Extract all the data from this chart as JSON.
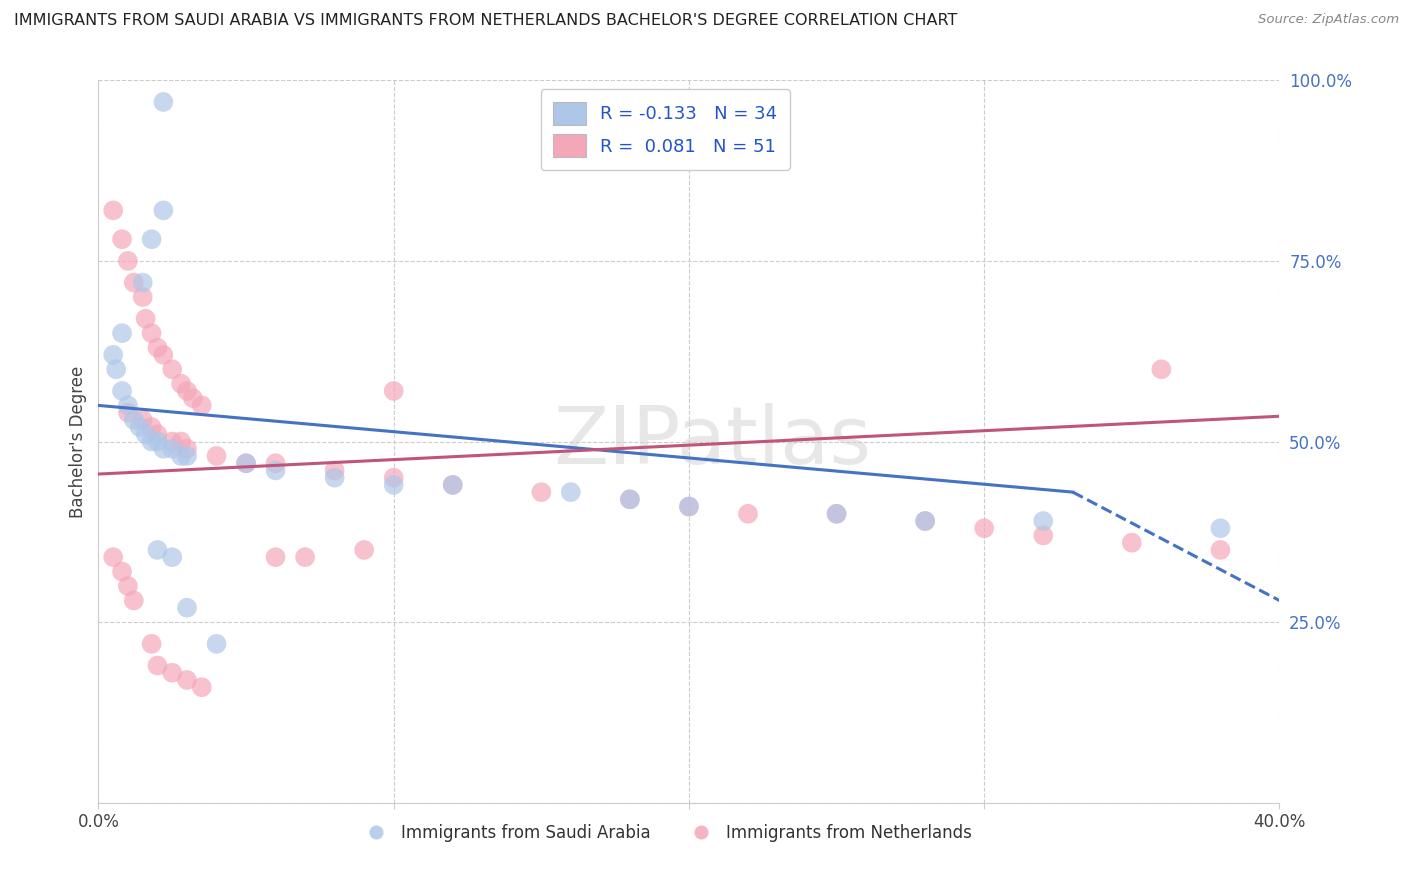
{
  "title": "IMMIGRANTS FROM SAUDI ARABIA VS IMMIGRANTS FROM NETHERLANDS BACHELOR'S DEGREE CORRELATION CHART",
  "source": "Source: ZipAtlas.com",
  "ylabel": "Bachelor's Degree",
  "watermark": "ZIPatlas",
  "legend_entries": [
    {
      "label": "R = -0.133   N = 34",
      "color": "#aec6e8"
    },
    {
      "label": "R =  0.081   N = 51",
      "color": "#f4a7b9"
    }
  ],
  "legend_series": [
    "Immigrants from Saudi Arabia",
    "Immigrants from Netherlands"
  ],
  "blue_color": "#aec6e8",
  "pink_color": "#f4a7b9",
  "line_blue": "#4472c4",
  "line_pink": "#c0547a",
  "blue_scatter_x": [
    0.022,
    0.022,
    0.018,
    0.015,
    0.008,
    0.005,
    0.006,
    0.008,
    0.01,
    0.012,
    0.014,
    0.016,
    0.018,
    0.02,
    0.022,
    0.025,
    0.028,
    0.03,
    0.05,
    0.06,
    0.08,
    0.1,
    0.12,
    0.16,
    0.18,
    0.2,
    0.25,
    0.28,
    0.32,
    0.38,
    0.02,
    0.025,
    0.03,
    0.04
  ],
  "blue_scatter_y": [
    0.97,
    0.82,
    0.78,
    0.72,
    0.65,
    0.62,
    0.6,
    0.57,
    0.55,
    0.53,
    0.52,
    0.51,
    0.5,
    0.5,
    0.49,
    0.49,
    0.48,
    0.48,
    0.47,
    0.46,
    0.45,
    0.44,
    0.44,
    0.43,
    0.42,
    0.41,
    0.4,
    0.39,
    0.39,
    0.38,
    0.35,
    0.34,
    0.27,
    0.22
  ],
  "pink_scatter_x": [
    0.005,
    0.008,
    0.01,
    0.012,
    0.015,
    0.016,
    0.018,
    0.02,
    0.022,
    0.025,
    0.028,
    0.03,
    0.032,
    0.035,
    0.01,
    0.015,
    0.018,
    0.02,
    0.025,
    0.028,
    0.03,
    0.04,
    0.05,
    0.06,
    0.08,
    0.1,
    0.12,
    0.15,
    0.18,
    0.2,
    0.22,
    0.25,
    0.28,
    0.3,
    0.32,
    0.35,
    0.38,
    0.005,
    0.008,
    0.01,
    0.012,
    0.018,
    0.02,
    0.025,
    0.03,
    0.035,
    0.06,
    0.07,
    0.09,
    0.1,
    0.36
  ],
  "pink_scatter_y": [
    0.82,
    0.78,
    0.75,
    0.72,
    0.7,
    0.67,
    0.65,
    0.63,
    0.62,
    0.6,
    0.58,
    0.57,
    0.56,
    0.55,
    0.54,
    0.53,
    0.52,
    0.51,
    0.5,
    0.5,
    0.49,
    0.48,
    0.47,
    0.47,
    0.46,
    0.45,
    0.44,
    0.43,
    0.42,
    0.41,
    0.4,
    0.4,
    0.39,
    0.38,
    0.37,
    0.36,
    0.35,
    0.34,
    0.32,
    0.3,
    0.28,
    0.22,
    0.19,
    0.18,
    0.17,
    0.16,
    0.34,
    0.34,
    0.35,
    0.57,
    0.6
  ],
  "blue_line_solid": [
    [
      0.0,
      0.55
    ],
    [
      0.33,
      0.43
    ]
  ],
  "blue_line_dashed": [
    [
      0.33,
      0.43
    ],
    [
      0.4,
      0.28
    ]
  ],
  "pink_line_solid": [
    [
      0.0,
      0.455
    ],
    [
      0.4,
      0.535
    ]
  ],
  "xlim": [
    0.0,
    0.4
  ],
  "ylim": [
    0.0,
    1.0
  ]
}
